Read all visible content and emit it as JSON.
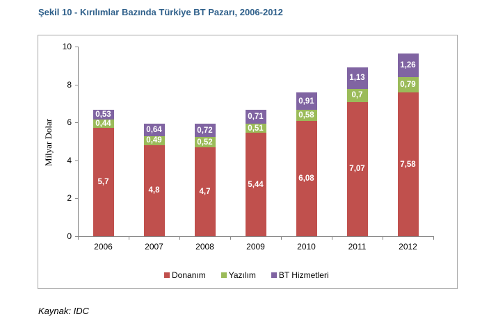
{
  "title": "Şekil 10 - Kırılımlar Bazında Türkiye BT Pazarı, 2006-2012",
  "source": "Kaynak: IDC",
  "colors": {
    "donanim": "#C0504D",
    "yazilim": "#9BBB59",
    "bt_hizmetleri": "#8064A2",
    "title": "#2E5F8A"
  },
  "legend": [
    {
      "label": "Donanım",
      "color": "#C0504D"
    },
    {
      "label": "Yazılım",
      "color": "#9BBB59"
    },
    {
      "label": "BT Hizmetleri",
      "color": "#8064A2"
    }
  ],
  "chart_data": {
    "type": "bar",
    "stacked": true,
    "title": "Şekil 10 - Kırılımlar Bazında Türkiye BT Pazarı, 2006-2012",
    "xlabel": "",
    "ylabel": "Milyar Dolar",
    "ylim": [
      0,
      10
    ],
    "yticks": [
      0,
      2,
      4,
      6,
      8,
      10
    ],
    "grid": false,
    "legend_position": "bottom",
    "categories": [
      "2006",
      "2007",
      "2008",
      "2009",
      "2010",
      "2011",
      "2012"
    ],
    "series": [
      {
        "name": "Donanım",
        "color": "#C0504D",
        "values": [
          5.7,
          4.8,
          4.7,
          5.44,
          6.08,
          7.07,
          7.58
        ],
        "labels": [
          "5,7",
          "4,8",
          "4,7",
          "5,44",
          "6,08",
          "7,07",
          "7,58"
        ]
      },
      {
        "name": "Yazılım",
        "color": "#9BBB59",
        "values": [
          0.44,
          0.49,
          0.52,
          0.51,
          0.58,
          0.7,
          0.79
        ],
        "labels": [
          "0,44",
          "0,49",
          "0,52",
          "0,51",
          "0,58",
          "0,7",
          "0,79"
        ]
      },
      {
        "name": "BT Hizmetleri",
        "color": "#8064A2",
        "values": [
          0.53,
          0.64,
          0.72,
          0.71,
          0.91,
          1.13,
          1.26
        ],
        "labels": [
          "0,53",
          "0,64",
          "0,72",
          "0,71",
          "0,91",
          "1,13",
          "1,26"
        ]
      }
    ]
  }
}
